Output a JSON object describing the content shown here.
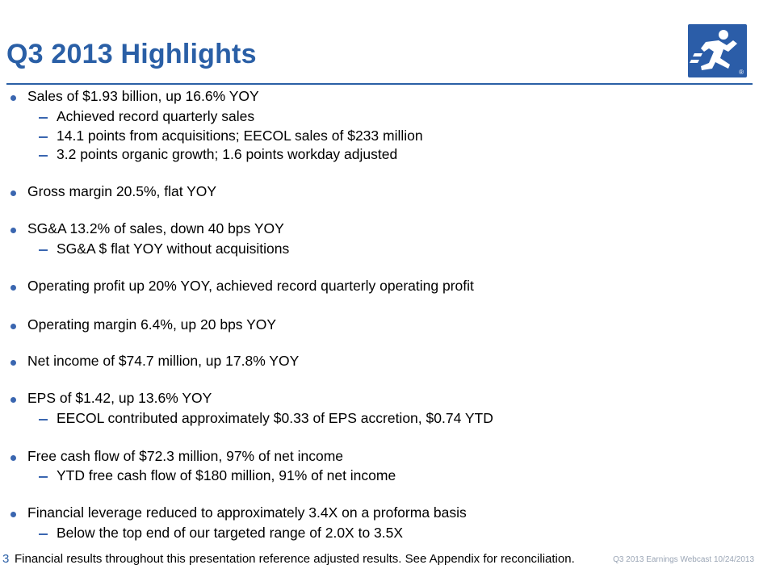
{
  "slide": {
    "title": "Q3 2013 Highlights",
    "page_number": "3",
    "footnote": "Financial results throughout this presentation reference adjusted results. See Appendix for reconciliation.",
    "footer_right": "Q3 2013 Earnings Webcast 10/24/2013",
    "logo_mark": "®"
  },
  "colors": {
    "brand_blue": "#2a5fa6",
    "bullet_blue": "#3a66b0"
  },
  "bullets": [
    {
      "text": "Sales of $1.93 billion, up 16.6% YOY",
      "subs": [
        "Achieved record quarterly sales",
        "14.1 points from acquisitions; EECOL sales of $233 million",
        "3.2 points organic growth; 1.6 points workday adjusted"
      ]
    },
    {
      "text": "Gross margin 20.5%, flat YOY",
      "subs": []
    },
    {
      "text": "SG&A 13.2% of sales, down 40 bps YOY",
      "subs": [
        "SG&A $ flat YOY without acquisitions"
      ]
    },
    {
      "text": "Operating profit up 20% YOY, achieved record quarterly operating profit",
      "subs": []
    },
    {
      "text": "Operating margin 6.4%, up 20 bps YOY",
      "subs": []
    },
    {
      "text": "Net income of $74.7 million, up 17.8% YOY",
      "subs": []
    },
    {
      "text": "EPS of $1.42, up 13.6% YOY",
      "subs": [
        "EECOL contributed approximately $0.33 of EPS accretion, $0.74 YTD"
      ]
    },
    {
      "text": "Free cash flow of $72.3 million, 97% of net income",
      "subs": [
        "YTD free cash flow of $180 million, 91% of net income"
      ]
    },
    {
      "text": "Financial leverage reduced to approximately 3.4X on a proforma basis",
      "subs": [
        "Below the top end of our targeted range of 2.0X to 3.5X"
      ]
    }
  ]
}
